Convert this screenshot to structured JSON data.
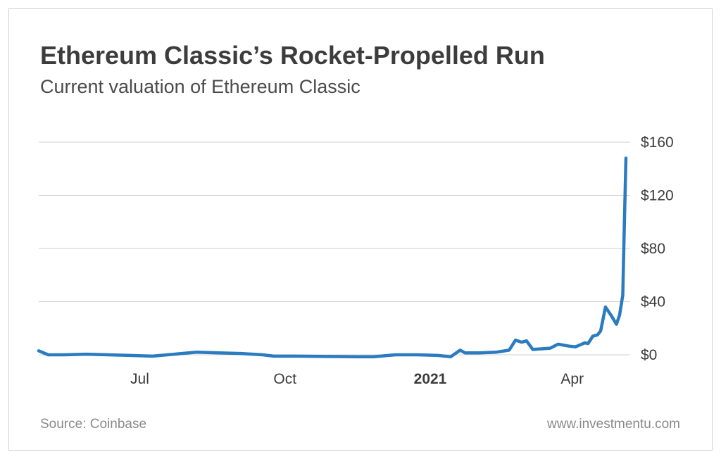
{
  "header": {
    "title": "Ethereum Classic’s Rocket-Propelled Run",
    "subtitle": "Current valuation of Ethereum Classic"
  },
  "footer": {
    "source": "Source: Coinbase",
    "site": "www.investmentu.com"
  },
  "colors": {
    "line": "#2b7bc0",
    "grid": "#cfcfcf",
    "text": "#3c3c3c",
    "muted": "#8a8a8a"
  },
  "chart_data": {
    "type": "line",
    "title": "Ethereum Classic’s Rocket-Propelled Run",
    "subtitle": "Current valuation of Ethereum Classic",
    "xlabel": "",
    "ylabel": "",
    "x_range": [
      "2020-04-28",
      "2021-05-05"
    ],
    "ylim": [
      0,
      160
    ],
    "grid": "horizontal",
    "legend": "none",
    "y_ticks": [
      {
        "value": 0,
        "label": "$0"
      },
      {
        "value": 40,
        "label": "$40"
      },
      {
        "value": 80,
        "label": "$80"
      },
      {
        "value": 120,
        "label": "$120"
      },
      {
        "value": 160,
        "label": "$160"
      }
    ],
    "x_ticks": [
      {
        "date": "2020-07-01",
        "label": "Jul",
        "bold": false
      },
      {
        "date": "2020-10-01",
        "label": "Oct",
        "bold": false
      },
      {
        "date": "2021-01-01",
        "label": "2021",
        "bold": true
      },
      {
        "date": "2021-04-01",
        "label": "Apr",
        "bold": false
      }
    ],
    "series": [
      {
        "points": [
          [
            "2020-04-28",
            3
          ],
          [
            "2020-05-04",
            0
          ],
          [
            "2020-05-14",
            0
          ],
          [
            "2020-05-28",
            0.5
          ],
          [
            "2020-06-11",
            0
          ],
          [
            "2020-06-25",
            -0.5
          ],
          [
            "2020-07-09",
            -1
          ],
          [
            "2020-07-23",
            0.5
          ],
          [
            "2020-08-06",
            2
          ],
          [
            "2020-08-20",
            1.5
          ],
          [
            "2020-09-03",
            1
          ],
          [
            "2020-09-17",
            0
          ],
          [
            "2020-09-24",
            -1
          ],
          [
            "2020-10-08",
            -1
          ],
          [
            "2020-10-22",
            -1.2
          ],
          [
            "2020-11-05",
            -1.3
          ],
          [
            "2020-11-19",
            -1.5
          ],
          [
            "2020-11-26",
            -1.5
          ],
          [
            "2020-12-10",
            0
          ],
          [
            "2020-12-24",
            0
          ],
          [
            "2021-01-06",
            -0.5
          ],
          [
            "2021-01-14",
            -1.5
          ],
          [
            "2021-01-20",
            3.5
          ],
          [
            "2021-01-23",
            1.5
          ],
          [
            "2021-02-01",
            1.5
          ],
          [
            "2021-02-12",
            2
          ],
          [
            "2021-02-20",
            3.5
          ],
          [
            "2021-02-24",
            11
          ],
          [
            "2021-02-28",
            9.5
          ],
          [
            "2021-03-03",
            10.5
          ],
          [
            "2021-03-07",
            4
          ],
          [
            "2021-03-18",
            5
          ],
          [
            "2021-03-23",
            8
          ],
          [
            "2021-03-30",
            6.5
          ],
          [
            "2021-04-03",
            6
          ],
          [
            "2021-04-09",
            9
          ],
          [
            "2021-04-11",
            8.5
          ],
          [
            "2021-04-14",
            14
          ],
          [
            "2021-04-17",
            15
          ],
          [
            "2021-04-19",
            18
          ],
          [
            "2021-04-22",
            36
          ],
          [
            "2021-04-26",
            29
          ],
          [
            "2021-04-29",
            23
          ],
          [
            "2021-05-01",
            30
          ],
          [
            "2021-05-03",
            45
          ],
          [
            "2021-05-04",
            100
          ],
          [
            "2021-05-05",
            148
          ]
        ]
      }
    ]
  }
}
